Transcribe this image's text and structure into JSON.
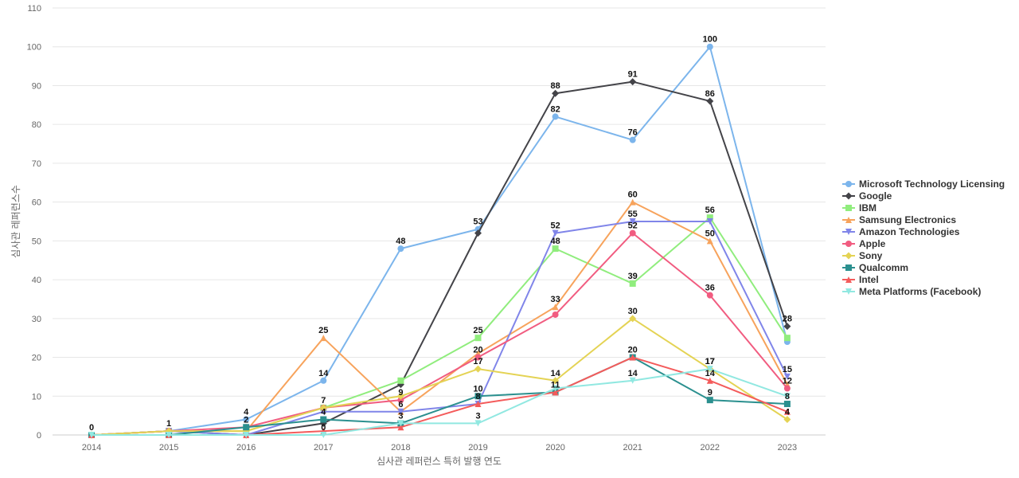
{
  "chart_data": {
    "type": "line",
    "xlabel": "심사관 레퍼런스 특허 발행 연도",
    "ylabel": "심사관 레퍼런스수",
    "x": [
      "2014",
      "2015",
      "2016",
      "2017",
      "2018",
      "2019",
      "2020",
      "2021",
      "2022",
      "2023"
    ],
    "ylim": [
      0,
      110
    ],
    "yticks": [
      0,
      10,
      20,
      30,
      40,
      50,
      60,
      70,
      80,
      90,
      100,
      110
    ],
    "grid": true,
    "legend_position": "right",
    "series": [
      {
        "name": "Microsoft Technology Licensing",
        "color": "#7cb5ec",
        "marker": "circle",
        "values": [
          0,
          1,
          4,
          14,
          48,
          53,
          82,
          76,
          100,
          24
        ],
        "labeled": [
          true,
          true,
          true,
          true,
          true,
          true,
          true,
          true,
          true,
          false
        ]
      },
      {
        "name": "Google",
        "color": "#434348",
        "marker": "diamond",
        "values": [
          0,
          1,
          0,
          3,
          13,
          52,
          88,
          91,
          86,
          28
        ],
        "labeled": [
          false,
          false,
          false,
          false,
          false,
          false,
          true,
          true,
          true,
          true
        ]
      },
      {
        "name": "IBM",
        "color": "#90ed7d",
        "marker": "square",
        "values": [
          0,
          1,
          1,
          7,
          14,
          25,
          48,
          39,
          56,
          25
        ],
        "labeled": [
          false,
          false,
          false,
          false,
          false,
          true,
          true,
          true,
          true,
          false
        ]
      },
      {
        "name": "Samsung Electronics",
        "color": "#f7a35c",
        "marker": "triangle",
        "values": [
          0,
          1,
          1,
          25,
          6,
          21,
          33,
          60,
          50,
          13
        ],
        "labeled": [
          false,
          false,
          false,
          true,
          true,
          false,
          true,
          true,
          true,
          false
        ]
      },
      {
        "name": "Amazon Technologies",
        "color": "#8085e9",
        "marker": "triangle-down",
        "values": [
          0,
          1,
          0,
          6,
          6,
          8,
          52,
          55,
          55,
          15
        ],
        "labeled": [
          false,
          false,
          false,
          false,
          false,
          false,
          true,
          true,
          false,
          true
        ]
      },
      {
        "name": "Apple",
        "color": "#f15c80",
        "marker": "circle",
        "values": [
          0,
          1,
          2,
          7,
          9,
          20,
          31,
          52,
          36,
          12
        ],
        "labeled": [
          false,
          false,
          false,
          false,
          true,
          true,
          false,
          true,
          true,
          true
        ]
      },
      {
        "name": "Sony",
        "color": "#e4d354",
        "marker": "diamond",
        "values": [
          0,
          1,
          1,
          7,
          10,
          17,
          14,
          30,
          17,
          4
        ],
        "labeled": [
          false,
          false,
          false,
          true,
          false,
          true,
          true,
          true,
          true,
          true
        ]
      },
      {
        "name": "Qualcomm",
        "color": "#2b908f",
        "marker": "square",
        "values": [
          0,
          0,
          2,
          4,
          3,
          10,
          11,
          20,
          9,
          8
        ],
        "labeled": [
          false,
          false,
          true,
          true,
          true,
          true,
          true,
          true,
          true,
          true
        ]
      },
      {
        "name": "Intel",
        "color": "#f45b5b",
        "marker": "triangle",
        "values": [
          0,
          0,
          0,
          1,
          2,
          8,
          11,
          20,
          14,
          6
        ],
        "labeled": [
          false,
          false,
          false,
          false,
          false,
          true,
          false,
          false,
          true,
          false
        ]
      },
      {
        "name": "Meta Platforms (Facebook)",
        "color": "#91e8e1",
        "marker": "triangle-down",
        "values": [
          0,
          0,
          0,
          0,
          3,
          3,
          12,
          14,
          17,
          10
        ],
        "labeled": [
          false,
          false,
          false,
          true,
          false,
          true,
          false,
          true,
          true,
          false
        ]
      }
    ]
  }
}
